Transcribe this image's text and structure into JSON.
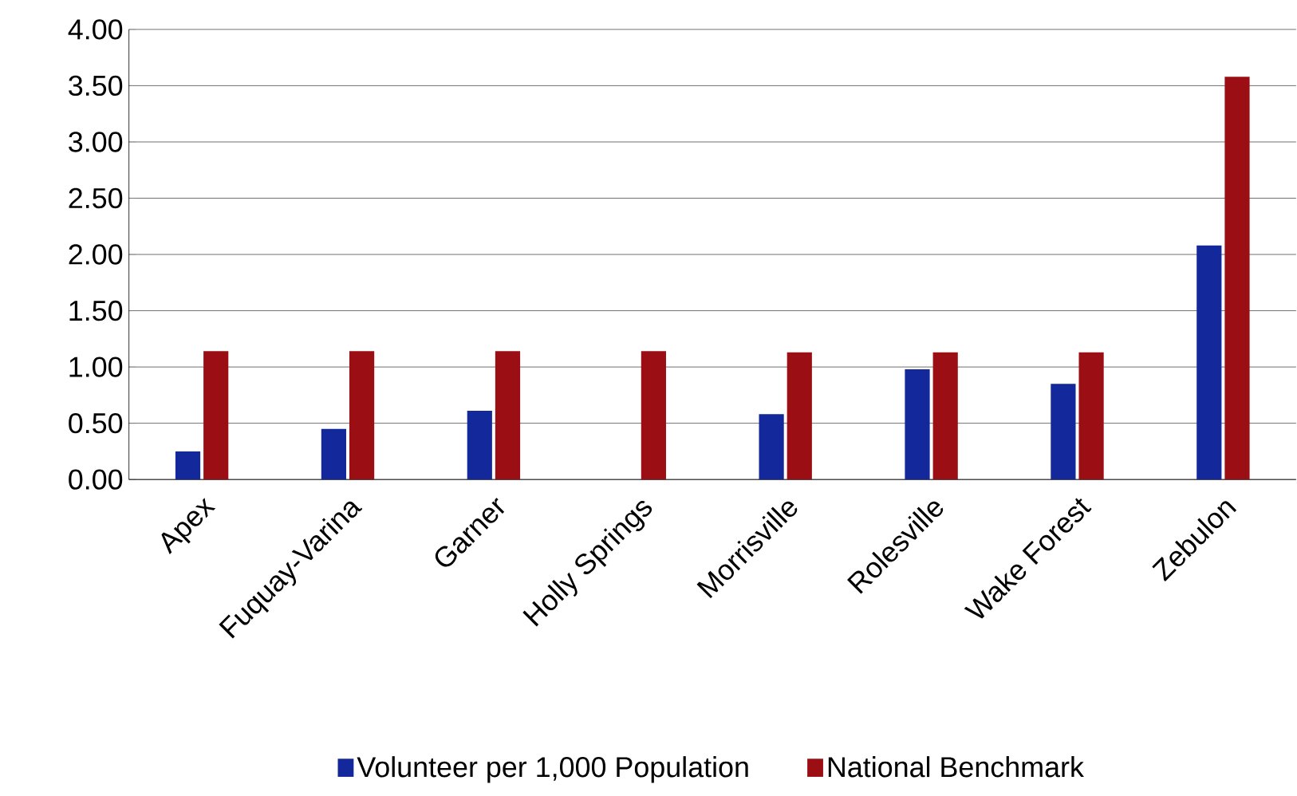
{
  "chart_data": {
    "type": "bar",
    "categories": [
      "Apex",
      "Fuquay-Varina",
      "Garner",
      "Holly Springs",
      "Morrisville",
      "Rolesville",
      "Wake Forest",
      "Zebulon"
    ],
    "series": [
      {
        "name": "Volunteer per 1,000 Population",
        "color": "#13289a",
        "values": [
          0.25,
          0.45,
          0.61,
          null,
          0.58,
          0.98,
          0.85,
          2.08
        ]
      },
      {
        "name": "National Benchmark",
        "color": "#9b0f14",
        "values": [
          1.14,
          1.14,
          1.14,
          1.14,
          1.13,
          1.13,
          1.13,
          3.58
        ]
      }
    ],
    "ylim": [
      0,
      4
    ],
    "yticks": [
      {
        "value": 0,
        "label": "0.00"
      },
      {
        "value": 0.5,
        "label": "0.50"
      },
      {
        "value": 1,
        "label": "1.00"
      },
      {
        "value": 1.5,
        "label": "1.50"
      },
      {
        "value": 2,
        "label": "2.00"
      },
      {
        "value": 2.5,
        "label": "2.50"
      },
      {
        "value": 3,
        "label": "3.00"
      },
      {
        "value": 3.5,
        "label": "3.50"
      },
      {
        "value": 4,
        "label": "4.00"
      }
    ],
    "grid": "y",
    "legend": "bottom"
  }
}
